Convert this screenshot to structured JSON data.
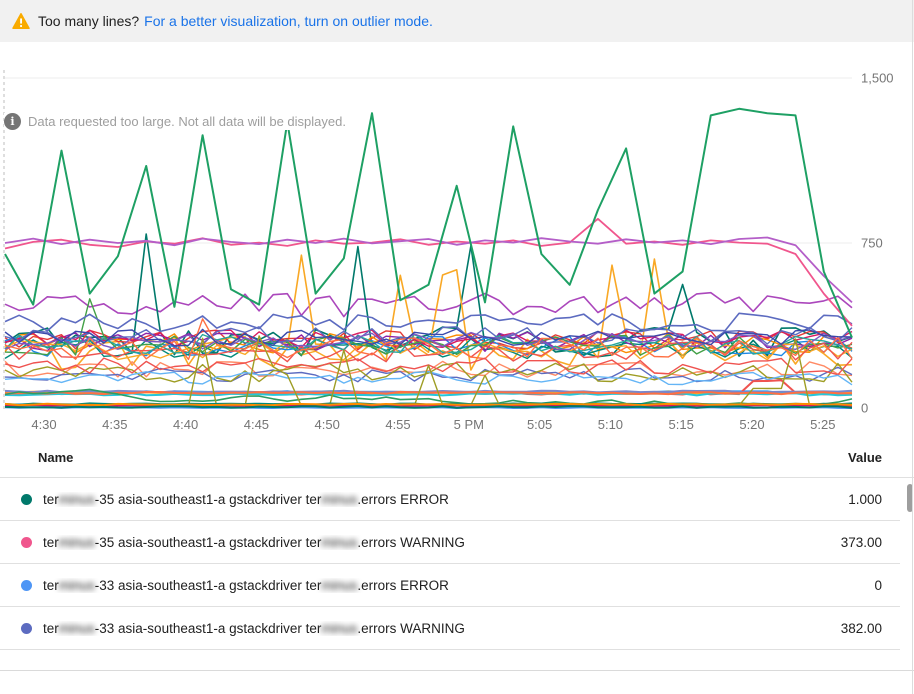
{
  "banner": {
    "warning_icon": "warning-triangle-icon",
    "text": "Too many lines?",
    "link": "For a better visualization, turn on outlier mode."
  },
  "notice": {
    "icon": "info-circle-icon",
    "text": "Data requested too large. Not all data will be displayed."
  },
  "colors": {
    "banner_bg": "#f1f1f1",
    "link_blue": "#1a73e8",
    "warning_amber": "#f9ab00",
    "grid_line": "#ececec",
    "axis_text": "#757575",
    "divider": "#e0e0e0"
  },
  "chart_data": {
    "type": "line",
    "title": "",
    "xlabel": "",
    "ylabel": "",
    "ylim": [
      0,
      1500
    ],
    "y_ticks": [
      "0",
      "750",
      "1,500"
    ],
    "x_ticks": [
      "4:30",
      "4:35",
      "4:40",
      "4:45",
      "4:50",
      "4:55",
      "5 PM",
      "5:05",
      "5:10",
      "5:15",
      "5:20",
      "5:25"
    ],
    "grid": "horizontal",
    "legend_position": "table-below",
    "note": "Dense multi-series chart (~40 lines); values estimated from gridlines 0/750/1500.",
    "featured_series": [
      {
        "name": "green-spiky-line",
        "color": "#1ea064",
        "w": 2,
        "values": [
          700,
          470,
          1170,
          520,
          690,
          1100,
          460,
          1240,
          540,
          470,
          1300,
          520,
          680,
          1340,
          490,
          560,
          1010,
          480,
          1280,
          700,
          560,
          900,
          1180,
          520,
          620,
          1330,
          1360,
          1340,
          1330,
          620,
          320
        ]
      },
      {
        "name": "magenta-750-line",
        "color": "#b45ec8",
        "w": 1.8,
        "values": [
          750,
          770,
          745,
          765,
          750,
          760,
          740,
          770,
          755,
          745,
          765,
          750,
          770,
          748,
          758,
          768,
          742,
          762,
          752,
          772,
          757,
          747,
          767,
          752,
          762,
          745,
          768,
          775,
          740,
          600,
          480
        ]
      },
      {
        "name": "pink-warning-line",
        "color": "#f0568d",
        "w": 1.8,
        "values": [
          725,
          755,
          765,
          742,
          732,
          757,
          747,
          772,
          742,
          752,
          737,
          762,
          747,
          752,
          767,
          742,
          757,
          747,
          762,
          737,
          752,
          860,
          747,
          757,
          742,
          762,
          752,
          747,
          700,
          520,
          373
        ]
      },
      {
        "name": "indigo-warning-line",
        "color": "#5c6bc0",
        "w": 1.6,
        "base": 390,
        "amp": 42,
        "end": 382
      },
      {
        "name": "teal-error-line",
        "color": "#00796b",
        "w": 2,
        "base": 5,
        "amp": 4,
        "end": 1
      },
      {
        "name": "blue-error-line",
        "color": "#4e96f5",
        "w": 2,
        "base": 2,
        "amp": 2,
        "end": 0
      }
    ],
    "background_series": [
      {
        "color": "#ab47bc",
        "base": 470,
        "amp": 55,
        "w": 1.6
      },
      {
        "color": "#00796b",
        "base": 300,
        "amp": 70,
        "w": 1.6,
        "spike": {
          "p": 0.09,
          "lo": 500,
          "hi": 860
        }
      },
      {
        "color": "#f9a825",
        "base": 250,
        "amp": 80,
        "w": 1.6,
        "spike": {
          "p": 0.06,
          "lo": 600,
          "hi": 800
        }
      },
      {
        "color": "#e53935",
        "base": 310,
        "amp": 45
      },
      {
        "color": "#fb8c00",
        "base": 295,
        "amp": 45
      },
      {
        "color": "#1e88e5",
        "base": 280,
        "amp": 45
      },
      {
        "color": "#00897b",
        "base": 270,
        "amp": 45
      },
      {
        "color": "#8e24aa",
        "base": 300,
        "amp": 45
      },
      {
        "color": "#d81b60",
        "base": 315,
        "amp": 40
      },
      {
        "color": "#f9a825",
        "base": 260,
        "amp": 45
      },
      {
        "color": "#43a047",
        "base": 285,
        "amp": 45,
        "spike": {
          "p": 0.03,
          "lo": 380,
          "hi": 500
        }
      },
      {
        "color": "#5c6bc0",
        "base": 330,
        "amp": 40
      },
      {
        "color": "#ef5350",
        "base": 255,
        "amp": 45
      },
      {
        "color": "#26a69a",
        "base": 290,
        "amp": 45
      },
      {
        "color": "#7e57c2",
        "base": 305,
        "amp": 40
      },
      {
        "color": "#ff7043",
        "base": 270,
        "amp": 50,
        "spike": {
          "p": 0.03,
          "lo": 380,
          "hi": 470
        }
      },
      {
        "color": "#3949ab",
        "base": 320,
        "amp": 40
      },
      {
        "color": "#ff8a65",
        "base": 175,
        "amp": 40
      },
      {
        "color": "#5c6bc0",
        "base": 150,
        "amp": 35
      },
      {
        "color": "#9e9d24",
        "base": 160,
        "amp": 45
      },
      {
        "color": "#ef5350",
        "base": 190,
        "amp": 40
      },
      {
        "color": "#64b5f6",
        "base": 135,
        "amp": 30
      },
      {
        "color": "#42a5f5",
        "base": 72,
        "amp": 5,
        "w": 2
      },
      {
        "color": "#ef5350",
        "base": 66,
        "amp": 5,
        "w": 2,
        "bump": {
          "at": 53,
          "len": 3,
          "add": 60
        }
      },
      {
        "color": "#f9a825",
        "base": 70,
        "amp": 5,
        "w": 2
      },
      {
        "color": "#26c6da",
        "base": 62,
        "amp": 5,
        "w": 2
      },
      {
        "color": "#7986cb",
        "base": 75,
        "amp": 4,
        "w": 2
      },
      {
        "color": "#ff7043",
        "base": 68,
        "amp": 5,
        "w": 2
      },
      {
        "color": "#2e9d63",
        "walk": true,
        "base": 55,
        "amp": 16,
        "min": 18,
        "max": 95,
        "w": 1.6
      },
      {
        "color": "#9e9d24",
        "base": 10,
        "amp": 6,
        "spike": {
          "p": 0.13,
          "lo": 120,
          "hi": 330
        },
        "bump": {
          "at": 53,
          "len": 3,
          "add": 80
        }
      },
      {
        "color": "#1e88e5",
        "base": 14,
        "amp": 3,
        "w": 2
      },
      {
        "color": "#00897b",
        "base": 18,
        "amp": 3,
        "w": 2
      },
      {
        "color": "#d81b60",
        "base": 11,
        "amp": 3,
        "w": 2
      },
      {
        "color": "#fb8c00",
        "base": 16,
        "amp": 3,
        "w": 2
      }
    ]
  },
  "legend": {
    "columns": {
      "name": "Name",
      "value": "Value"
    },
    "rows": [
      {
        "color": "#00796b",
        "value": "1.000",
        "segments": [
          {
            "t": "ter"
          },
          {
            "t": "minus",
            "blur": true
          },
          {
            "t": "-35 asia-southeast1-a gstackdriver ter"
          },
          {
            "t": "minus",
            "blur": true
          },
          {
            "t": ".errors ERROR"
          }
        ]
      },
      {
        "color": "#f0568d",
        "value": "373.00",
        "segments": [
          {
            "t": "ter"
          },
          {
            "t": "minus",
            "blur": true
          },
          {
            "t": "-35 asia-southeast1-a gstackdriver ter"
          },
          {
            "t": "minus",
            "blur": true
          },
          {
            "t": ".errors WARNING"
          }
        ]
      },
      {
        "color": "#4e96f5",
        "value": "0",
        "segments": [
          {
            "t": "ter"
          },
          {
            "t": "minus",
            "blur": true
          },
          {
            "t": "-33 asia-southeast1-a gstackdriver ter"
          },
          {
            "t": "minus",
            "blur": true
          },
          {
            "t": ".errors ERROR"
          }
        ]
      },
      {
        "color": "#5c6bc0",
        "value": "382.00",
        "segments": [
          {
            "t": "ter"
          },
          {
            "t": "minus",
            "blur": true
          },
          {
            "t": "-33 asia-southeast1-a gstackdriver ter"
          },
          {
            "t": "minus",
            "blur": true
          },
          {
            "t": ".errors WARNING"
          }
        ]
      }
    ]
  }
}
